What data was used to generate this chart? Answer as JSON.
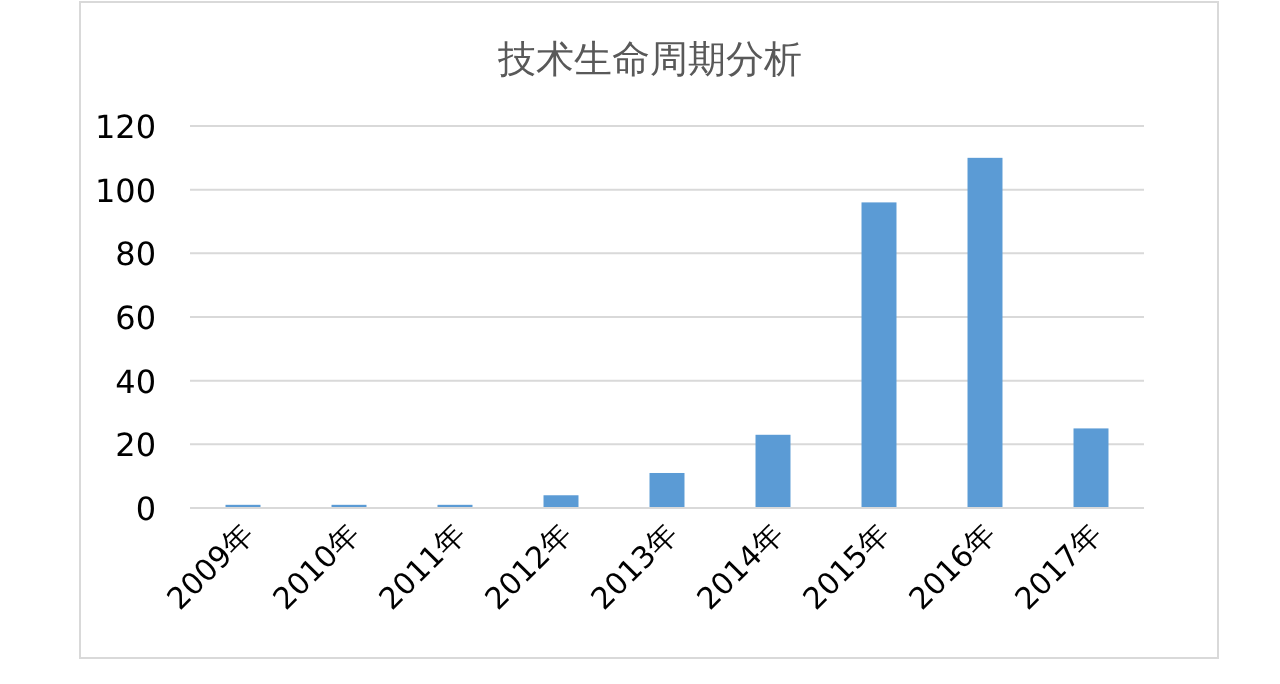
{
  "chart_data": {
    "type": "bar",
    "title": "技术生命周期分析",
    "categories": [
      "2009年",
      "2010年",
      "2011年",
      "2012年",
      "2013年",
      "2014年",
      "2015年",
      "2016年",
      "2017年"
    ],
    "values": [
      1,
      1,
      1,
      4,
      11,
      23,
      96,
      110,
      25
    ],
    "color": "#5b9bd5",
    "ylim": [
      0,
      120
    ],
    "yticks": [
      0,
      20,
      40,
      60,
      80,
      100,
      120
    ],
    "grid": "y"
  }
}
